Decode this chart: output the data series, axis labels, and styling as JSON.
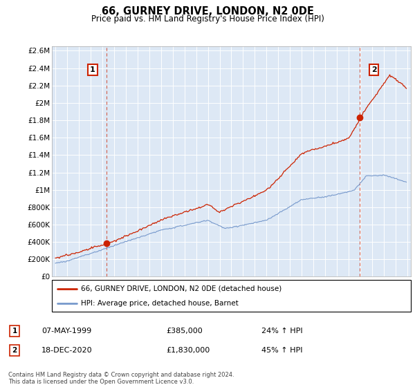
{
  "title": "66, GURNEY DRIVE, LONDON, N2 0DE",
  "subtitle": "Price paid vs. HM Land Registry's House Price Index (HPI)",
  "ylim": [
    0,
    2600000
  ],
  "yticks": [
    0,
    200000,
    400000,
    600000,
    800000,
    1000000,
    1200000,
    1400000,
    1600000,
    1800000,
    2000000,
    2200000,
    2400000,
    2600000
  ],
  "ytick_labels": [
    "£0",
    "£200K",
    "£400K",
    "£600K",
    "£800K",
    "£1M",
    "£1.2M",
    "£1.4M",
    "£1.6M",
    "£1.8M",
    "£2M",
    "£2.2M",
    "£2.4M",
    "£2.6M"
  ],
  "legend_label_red": "66, GURNEY DRIVE, LONDON, N2 0DE (detached house)",
  "legend_label_blue": "HPI: Average price, detached house, Barnet",
  "annotation1_date": "07-MAY-1999",
  "annotation1_price": "£385,000",
  "annotation1_hpi": "24% ↑ HPI",
  "annotation2_date": "18-DEC-2020",
  "annotation2_price": "£1,830,000",
  "annotation2_hpi": "45% ↑ HPI",
  "footer": "Contains HM Land Registry data © Crown copyright and database right 2024.\nThis data is licensed under the Open Government Licence v3.0.",
  "red_color": "#cc2200",
  "blue_color": "#7799cc",
  "bg_color": "#dde8f5",
  "dot_color": "#cc2200",
  "sale1_x": 1999.37,
  "sale1_y": 385000,
  "sale2_x": 2020.96,
  "sale2_y": 1830000,
  "vline1_x": 1999.37,
  "vline2_x": 2020.96,
  "xlim_left": 1994.7,
  "xlim_right": 2025.3
}
